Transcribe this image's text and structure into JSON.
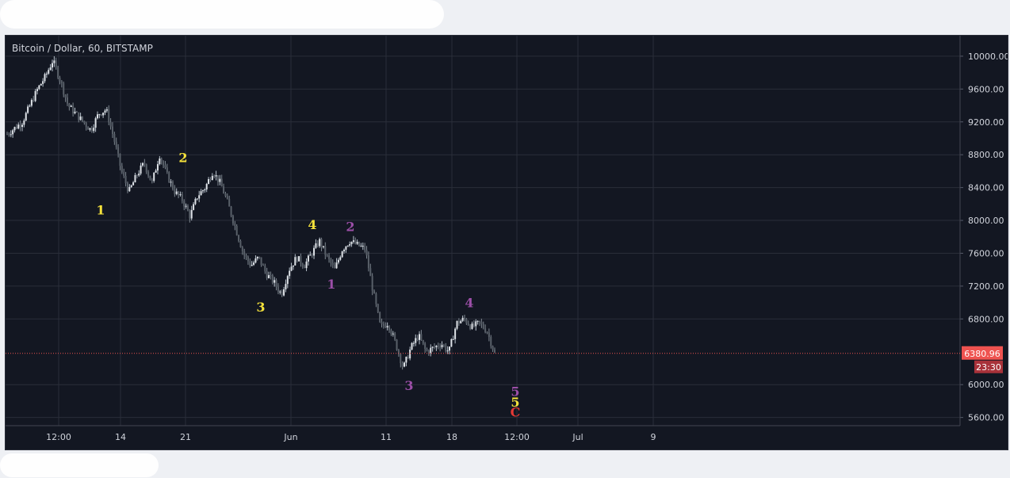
{
  "chart_data": {
    "type": "candlestick",
    "title": "Bitcoin / Dollar, 60, BITSTAMP",
    "x_ticks": [
      "12:00",
      "14",
      "21",
      "Jun",
      "11",
      "18",
      "12:00",
      "Jul",
      "9"
    ],
    "y_ticks": [
      10000,
      9600,
      9200,
      8800,
      8400,
      8000,
      7600,
      7200,
      6800,
      6000,
      5600
    ],
    "y_tick_labels": [
      "10000.00",
      "9600.00",
      "9200.00",
      "8800.00",
      "8400.00",
      "8000.00",
      "7600.00",
      "7200.00",
      "6800.00",
      "6000.00",
      "5600.00"
    ],
    "ylim": [
      5500,
      10250
    ],
    "last_price": 6380.96,
    "last_price_label": "6380.96",
    "countdown_label": "23:30",
    "price_path": [
      [
        0,
        9050
      ],
      [
        2,
        9200
      ],
      [
        4,
        9600
      ],
      [
        5,
        9750
      ],
      [
        6,
        9950
      ],
      [
        7,
        9700
      ],
      [
        8,
        9400
      ],
      [
        9,
        9300
      ],
      [
        10,
        9200
      ],
      [
        11,
        9100
      ],
      [
        12,
        9300
      ],
      [
        13,
        9350
      ],
      [
        14,
        9000
      ],
      [
        15,
        8600
      ],
      [
        16,
        8350
      ],
      [
        17,
        8550
      ],
      [
        18,
        8700
      ],
      [
        19,
        8450
      ],
      [
        20,
        8800
      ],
      [
        21,
        8550
      ],
      [
        22,
        8350
      ],
      [
        23,
        8250
      ],
      [
        24,
        8050
      ],
      [
        25,
        8300
      ],
      [
        26,
        8400
      ],
      [
        27,
        8600
      ],
      [
        28,
        8450
      ],
      [
        29,
        8200
      ],
      [
        30,
        7900
      ],
      [
        31,
        7600
      ],
      [
        32,
        7450
      ],
      [
        33,
        7550
      ],
      [
        34,
        7350
      ],
      [
        35,
        7250
      ],
      [
        36,
        7100
      ],
      [
        37,
        7400
      ],
      [
        38,
        7550
      ],
      [
        39,
        7450
      ],
      [
        40,
        7600
      ],
      [
        41,
        7750
      ],
      [
        42,
        7550
      ],
      [
        43,
        7400
      ],
      [
        44,
        7650
      ],
      [
        45,
        7750
      ],
      [
        46,
        7700
      ],
      [
        47,
        7650
      ],
      [
        48,
        7150
      ],
      [
        49,
        6700
      ],
      [
        50,
        6750
      ],
      [
        51,
        6500
      ],
      [
        52,
        6200
      ],
      [
        53,
        6450
      ],
      [
        54,
        6600
      ],
      [
        55,
        6400
      ],
      [
        56,
        6450
      ],
      [
        57,
        6500
      ],
      [
        58,
        6400
      ],
      [
        59,
        6750
      ],
      [
        60,
        6800
      ],
      [
        61,
        6700
      ],
      [
        62,
        6750
      ],
      [
        63,
        6650
      ],
      [
        64,
        6380
      ]
    ],
    "wave_labels": [
      {
        "text": "1",
        "x": 15.5,
        "y": 8130,
        "color": "#f5e23b"
      },
      {
        "text": "2",
        "x": 28,
        "y": 8770,
        "color": "#f5e23b"
      },
      {
        "text": "3",
        "x": 40,
        "y": 6950,
        "color": "#f5e23b"
      },
      {
        "text": "4",
        "x": 49,
        "y": 7950,
        "color": "#f5e23b"
      },
      {
        "text": "1",
        "x": 52,
        "y": 7230,
        "color": "#9c4fa8"
      },
      {
        "text": "2",
        "x": 55,
        "y": 7930,
        "color": "#9c4fa8"
      },
      {
        "text": "3",
        "x": 64.5,
        "y": 5990,
        "color": "#9c4fa8"
      },
      {
        "text": "4",
        "x": 74,
        "y": 7000,
        "color": "#9c4fa8"
      },
      {
        "text": "5",
        "x": 82,
        "y": 5920,
        "color": "#9c4fa8"
      },
      {
        "text": "5",
        "x": 82,
        "y": 5790,
        "color": "#f5e23b"
      },
      {
        "text": "C",
        "x": 82,
        "y": 5670,
        "color": "#e53935"
      }
    ],
    "colors": {
      "background": "#131722",
      "grid": "#2a2e39",
      "candle_up": "#26a69a",
      "candle_down": "#ef5350",
      "axis_text": "#d1d4dc",
      "price_line": "#ef5350"
    },
    "grid": true
  }
}
